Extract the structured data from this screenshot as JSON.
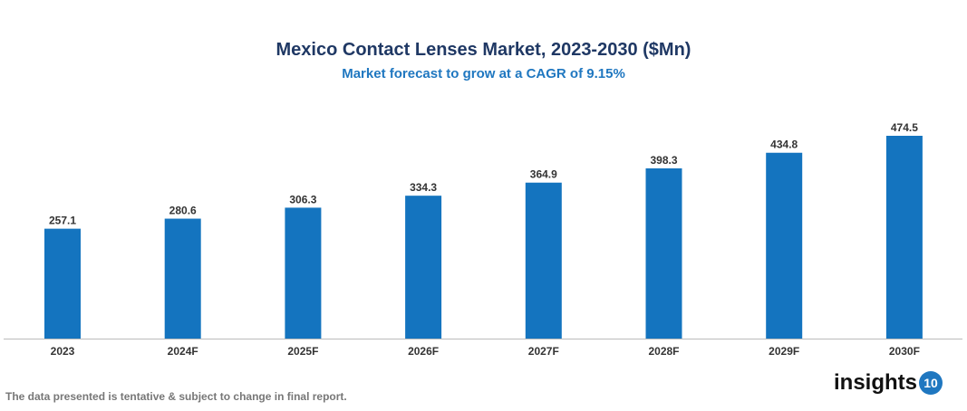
{
  "chart_data": {
    "type": "bar",
    "title": "Mexico Contact Lenses Market, 2023-2030 ($Mn)",
    "subtitle": "Market forecast to grow at a CAGR of 9.15%",
    "categories": [
      "2023",
      "2024F",
      "2025F",
      "2026F",
      "2027F",
      "2028F",
      "2029F",
      "2030F"
    ],
    "values": [
      257.1,
      280.6,
      306.3,
      334.3,
      364.9,
      398.3,
      434.8,
      474.5
    ],
    "xlabel": "",
    "ylabel": "",
    "ylim": [
      0,
      474.5
    ],
    "grid": false,
    "bar_color": "#1474bf"
  },
  "footer": "The data presented is tentative & subject to change in final report.",
  "logo": {
    "text": "insights",
    "badge": "10"
  }
}
